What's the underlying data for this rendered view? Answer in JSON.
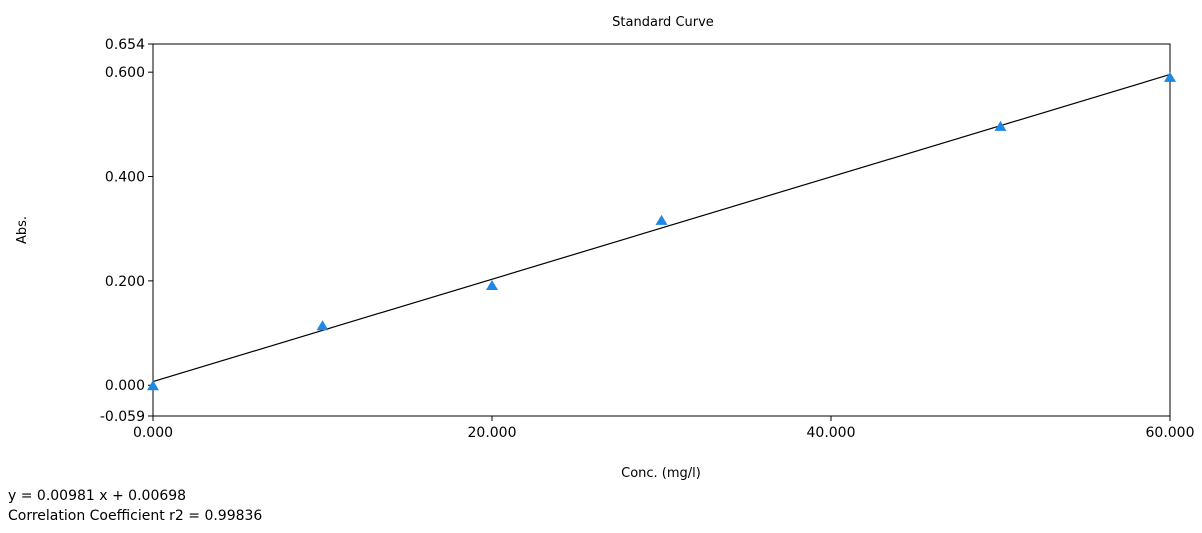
{
  "chart_data": {
    "type": "scatter",
    "title": "Standard Curve",
    "xlabel": "Conc. (mg/l)",
    "ylabel": "Abs.",
    "xlim": [
      0,
      60
    ],
    "ylim": [
      -0.059,
      0.654
    ],
    "x_ticks": [
      "0.000",
      "20.000",
      "40.000",
      "60.000"
    ],
    "x_tick_values": [
      0,
      20,
      40,
      60
    ],
    "y_ticks": [
      "0.654",
      "0.600",
      "0.400",
      "0.200",
      "0.000",
      "-0.059"
    ],
    "y_tick_values": [
      0.654,
      0.6,
      0.4,
      0.2,
      0.0,
      -0.059
    ],
    "grid": false,
    "series": [
      {
        "marker": "triangle",
        "color": "#1e88e5",
        "points": [
          {
            "x": 0,
            "y": 0.0
          },
          {
            "x": 10,
            "y": 0.115
          },
          {
            "x": 20,
            "y": 0.192
          },
          {
            "x": 30,
            "y": 0.317
          },
          {
            "x": 50,
            "y": 0.497
          },
          {
            "x": 60,
            "y": 0.591
          }
        ]
      }
    ],
    "fit_line": {
      "slope": 0.00981,
      "intercept": 0.00698,
      "color": "#000000"
    }
  },
  "annotations": {
    "equation": "y = 0.00981 x + 0.00698",
    "correlation": "Correlation Coefficient r2 = 0.99836"
  }
}
